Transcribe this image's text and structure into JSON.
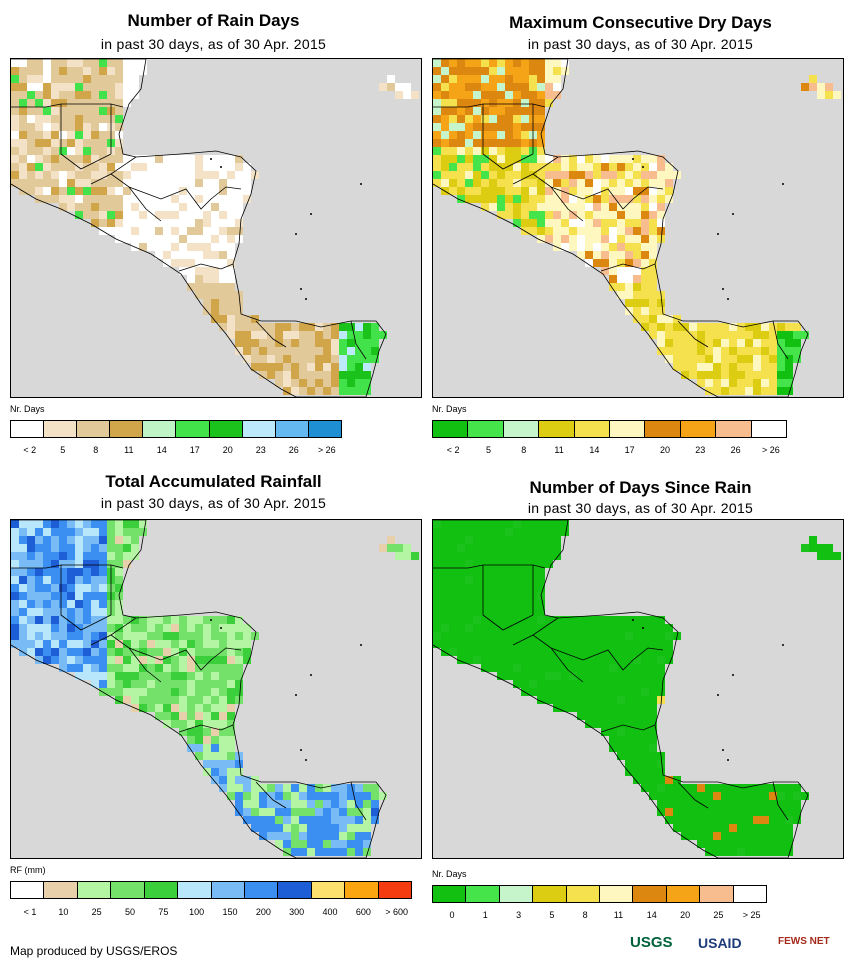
{
  "panels": [
    {
      "title": "Number of Rain Days",
      "subtitle": "in past 30 days, as of 30 Apr. 2015",
      "legend_unit": "Nr. Days",
      "legend_colors": [
        "#ffffff",
        "#f3e2c6",
        "#e2c99a",
        "#d1a64b",
        "#bff5c6",
        "#42e24a",
        "#1cc21c",
        "#bce9fb",
        "#63b9f0",
        "#1e8fd2"
      ],
      "legend_ticks": [
        "< 2",
        "5",
        "8",
        "11",
        "14",
        "17",
        "20",
        "23",
        "26",
        "> 26"
      ],
      "map_style": "rain_days"
    },
    {
      "title": "Maximum Consecutive Dry Days",
      "subtitle": "in past 30 days, as of 30 Apr. 2015",
      "legend_unit": "Nr. Days",
      "legend_colors": [
        "#11c011",
        "#44e44a",
        "#c6f5cc",
        "#dccd12",
        "#f5e14e",
        "#fff7c0",
        "#dc8810",
        "#f6a417",
        "#f7bd8f",
        "#ffffff"
      ],
      "legend_ticks": [
        "< 2",
        "5",
        "8",
        "11",
        "14",
        "17",
        "20",
        "23",
        "26",
        "> 26"
      ],
      "map_style": "dry_days"
    },
    {
      "title": "Total Accumulated Rainfall",
      "subtitle": "in past 30 days, as of 30 Apr. 2015",
      "legend_unit": "RF (mm)",
      "legend_colors": [
        "#ffffff",
        "#e8d1aa",
        "#b3f5a2",
        "#74e26a",
        "#3ccf3c",
        "#b8e6fa",
        "#78bbf5",
        "#3b8ff0",
        "#1d5ed6",
        "#fde16e",
        "#fba511",
        "#f53c10"
      ],
      "legend_ticks": [
        "< 1",
        "10",
        "25",
        "50",
        "75",
        "100",
        "150",
        "200",
        "300",
        "400",
        "600",
        "> 600"
      ],
      "map_style": "rainfall"
    },
    {
      "title": "Number of Days Since Rain",
      "subtitle": "in past 30 days, as of 30 Apr. 2015",
      "legend_unit": "Nr. Days",
      "legend_colors": [
        "#11c011",
        "#44e44a",
        "#c6f5cc",
        "#dccd12",
        "#f5e14e",
        "#fff7c0",
        "#dc8810",
        "#f6a417",
        "#f7bd8f",
        "#ffffff"
      ],
      "legend_ticks": [
        "0",
        "1",
        "3",
        "5",
        "8",
        "11",
        "14",
        "20",
        "25",
        "> 25"
      ],
      "map_style": "since_rain"
    }
  ],
  "credit": "Map produced by USGS/EROS",
  "logos": [
    "USGS",
    "USAID",
    "FEWS NET"
  ],
  "colors": {
    "ocean": "#d8d8d8",
    "border": "#000000"
  }
}
